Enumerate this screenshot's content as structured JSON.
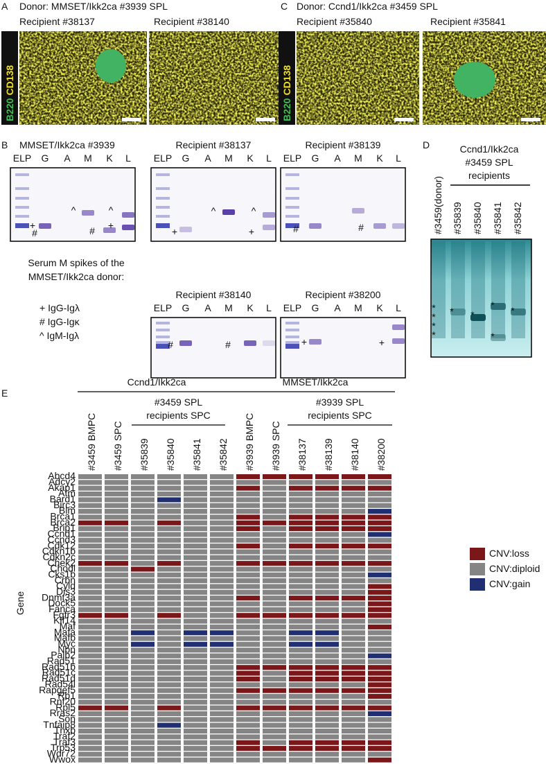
{
  "panel_a": {
    "letter": "A",
    "title": "Donor: MMSET/Ikk2ca #3939 SPL",
    "recipients": [
      "Recipient #38137",
      "Recipient #38140"
    ],
    "stain": [
      "B220",
      "CD138"
    ]
  },
  "panel_c": {
    "letter": "C",
    "title": "Donor: Ccnd1/Ikk2ca #3459 SPL",
    "recipients": [
      "Recipient #35840",
      "Recipient #35841"
    ],
    "stain": [
      "B220",
      "CD138"
    ]
  },
  "panel_b": {
    "letter": "B",
    "lanes": [
      "ELP",
      "G",
      "A",
      "M",
      "K",
      "L"
    ],
    "gels": [
      "MMSET/Ikk2ca #3939",
      "Recipient #38137",
      "Recipient #38139",
      "Recipient #38140",
      "Recipient #38200"
    ],
    "markers": [
      "+",
      "#",
      "^"
    ],
    "caption": [
      "Serum M spikes of the",
      "MMSET/Ikk2ca donor:"
    ],
    "key": [
      "+ IgG-Igλ",
      "# IgG-Igκ",
      "^ IgM-Igλ"
    ]
  },
  "panel_d": {
    "letter": "D",
    "title": [
      "Ccnd1/Ikk2ca",
      "#3459 SPL",
      "recipients"
    ],
    "lanes": [
      "#3459(donor)",
      "#35839",
      "#35840",
      "#35841",
      "#35842"
    ],
    "marker": "*"
  },
  "panel_e": {
    "letter": "E",
    "groups": [
      "Ccnd1/Ikk2ca",
      "MMSET/Ikk2ca"
    ],
    "subgroups": [
      [
        "#3459 SPL",
        "recipients SPC"
      ],
      [
        "#3939 SPL",
        "recipients SPC"
      ]
    ],
    "columns": [
      "#3459 BMPC",
      "#3459 SPC",
      "#35839",
      "#35840",
      "#35841",
      "#35842",
      "#3939 BMPC",
      "#3939 SPC",
      "#38137",
      "#38139",
      "#38140",
      "#38200"
    ],
    "y_label": "Gene",
    "legend": [
      {
        "label": "CNV:loss",
        "color": "#7b1718"
      },
      {
        "label": "CNV:diploid",
        "color": "#858585"
      },
      {
        "label": "CNV:gain",
        "color": "#1f2f72"
      }
    ],
    "genes": [
      "Abcd4",
      "Adcy2",
      "Akap1",
      "Atm",
      "Bard1",
      "Birc3",
      "Blm",
      "Brca1",
      "Brca2",
      "Brip1",
      "Ccnd1",
      "Ccnd3",
      "Cdk12",
      "Cdkn1b",
      "Cdkn2c",
      "Chek2",
      "Chodl",
      "Cks1b",
      "Crbn",
      "Cyld",
      "Dis3",
      "Dnmt3a",
      "Dock5",
      "Fanca",
      "Fgfr3",
      "Klf14",
      "Maf",
      "Mafa",
      "Mafb",
      "Myc",
      "Nbn",
      "Palb2",
      "Rad51",
      "Rad51b",
      "Rad51c",
      "Rad51d",
      "Rad54l",
      "Rapgef5",
      "Rb1",
      "Rnf20",
      "Rpl5",
      "Rras2",
      "Son",
      "Tnfaip8",
      "Tnxb",
      "Traf2",
      "Traf3",
      "Trp53",
      "Wdr72",
      "Wwox"
    ],
    "states": [
      [
        1,
        1,
        1,
        1,
        1,
        1,
        0,
        0,
        0,
        0,
        0,
        0
      ],
      [
        1,
        1,
        1,
        1,
        1,
        1,
        1,
        1,
        1,
        1,
        1,
        1
      ],
      [
        1,
        1,
        1,
        1,
        1,
        1,
        0,
        1,
        0,
        0,
        0,
        0
      ],
      [
        1,
        1,
        1,
        1,
        1,
        1,
        1,
        1,
        1,
        1,
        1,
        1
      ],
      [
        1,
        1,
        1,
        2,
        1,
        1,
        1,
        1,
        1,
        1,
        1,
        1
      ],
      [
        1,
        1,
        1,
        1,
        1,
        1,
        1,
        1,
        1,
        1,
        1,
        1
      ],
      [
        1,
        1,
        1,
        1,
        1,
        1,
        1,
        1,
        1,
        1,
        1,
        2
      ],
      [
        1,
        1,
        1,
        1,
        1,
        1,
        0,
        1,
        0,
        0,
        0,
        0
      ],
      [
        0,
        0,
        1,
        0,
        1,
        1,
        0,
        0,
        0,
        0,
        0,
        0
      ],
      [
        1,
        1,
        1,
        1,
        1,
        1,
        0,
        1,
        0,
        0,
        0,
        0
      ],
      [
        1,
        1,
        1,
        1,
        1,
        1,
        1,
        1,
        1,
        1,
        1,
        2
      ],
      [
        1,
        1,
        1,
        1,
        1,
        1,
        1,
        1,
        1,
        1,
        1,
        1
      ],
      [
        1,
        1,
        1,
        1,
        1,
        1,
        0,
        1,
        0,
        0,
        0,
        0
      ],
      [
        1,
        1,
        1,
        1,
        1,
        1,
        1,
        1,
        1,
        1,
        1,
        1
      ],
      [
        1,
        1,
        1,
        1,
        1,
        1,
        1,
        1,
        1,
        1,
        1,
        1
      ],
      [
        0,
        0,
        1,
        0,
        1,
        1,
        0,
        0,
        0,
        0,
        0,
        0
      ],
      [
        1,
        1,
        0,
        1,
        1,
        1,
        1,
        1,
        1,
        1,
        1,
        1
      ],
      [
        1,
        1,
        1,
        1,
        1,
        1,
        1,
        1,
        1,
        1,
        1,
        2
      ],
      [
        1,
        1,
        1,
        1,
        1,
        1,
        1,
        1,
        1,
        1,
        1,
        1
      ],
      [
        1,
        1,
        1,
        1,
        1,
        1,
        1,
        1,
        1,
        1,
        1,
        0
      ],
      [
        1,
        1,
        1,
        1,
        1,
        1,
        1,
        1,
        1,
        1,
        1,
        0
      ],
      [
        1,
        1,
        1,
        1,
        1,
        1,
        0,
        1,
        0,
        0,
        0,
        0
      ],
      [
        1,
        1,
        1,
        1,
        1,
        1,
        1,
        1,
        1,
        1,
        1,
        0
      ],
      [
        1,
        1,
        1,
        1,
        1,
        1,
        1,
        1,
        1,
        1,
        1,
        0
      ],
      [
        0,
        0,
        1,
        0,
        1,
        1,
        0,
        0,
        0,
        0,
        0,
        0
      ],
      [
        1,
        1,
        1,
        1,
        1,
        1,
        1,
        1,
        1,
        1,
        1,
        1
      ],
      [
        1,
        1,
        1,
        1,
        1,
        1,
        1,
        1,
        1,
        1,
        1,
        0
      ],
      [
        1,
        1,
        2,
        1,
        2,
        2,
        1,
        1,
        2,
        2,
        1,
        1
      ],
      [
        1,
        1,
        1,
        1,
        1,
        1,
        1,
        1,
        1,
        1,
        1,
        1
      ],
      [
        1,
        1,
        2,
        1,
        2,
        2,
        1,
        1,
        2,
        2,
        1,
        1
      ],
      [
        1,
        1,
        1,
        1,
        1,
        1,
        1,
        1,
        1,
        1,
        1,
        1
      ],
      [
        1,
        1,
        1,
        1,
        1,
        1,
        1,
        1,
        1,
        1,
        1,
        2
      ],
      [
        1,
        1,
        1,
        1,
        1,
        1,
        1,
        1,
        1,
        1,
        1,
        1
      ],
      [
        1,
        1,
        1,
        1,
        1,
        1,
        0,
        0,
        0,
        0,
        0,
        0
      ],
      [
        1,
        1,
        1,
        1,
        1,
        1,
        0,
        1,
        0,
        0,
        0,
        0
      ],
      [
        1,
        1,
        1,
        1,
        1,
        1,
        0,
        1,
        0,
        0,
        0,
        0
      ],
      [
        1,
        1,
        1,
        1,
        1,
        1,
        1,
        1,
        1,
        1,
        1,
        0
      ],
      [
        1,
        1,
        1,
        1,
        1,
        1,
        0,
        0,
        0,
        0,
        0,
        0
      ],
      [
        1,
        1,
        1,
        1,
        1,
        1,
        1,
        1,
        1,
        1,
        1,
        0
      ],
      [
        1,
        1,
        1,
        1,
        1,
        1,
        1,
        1,
        1,
        1,
        1,
        1
      ],
      [
        0,
        0,
        1,
        0,
        1,
        1,
        0,
        0,
        0,
        0,
        0,
        0
      ],
      [
        1,
        1,
        1,
        1,
        1,
        1,
        1,
        1,
        1,
        1,
        1,
        2
      ],
      [
        1,
        1,
        1,
        1,
        1,
        1,
        1,
        1,
        1,
        1,
        1,
        1
      ],
      [
        1,
        1,
        1,
        2,
        1,
        1,
        1,
        1,
        1,
        1,
        1,
        1
      ],
      [
        1,
        1,
        1,
        1,
        1,
        1,
        1,
        1,
        1,
        1,
        1,
        1
      ],
      [
        1,
        1,
        1,
        1,
        1,
        1,
        1,
        1,
        1,
        1,
        1,
        1
      ],
      [
        1,
        1,
        1,
        1,
        1,
        1,
        0,
        1,
        0,
        0,
        0,
        0
      ],
      [
        1,
        1,
        1,
        1,
        1,
        1,
        0,
        0,
        0,
        0,
        0,
        0
      ],
      [
        1,
        1,
        1,
        1,
        1,
        1,
        1,
        1,
        1,
        1,
        1,
        1
      ],
      [
        1,
        1,
        1,
        1,
        1,
        1,
        1,
        1,
        1,
        1,
        1,
        0
      ]
    ]
  }
}
